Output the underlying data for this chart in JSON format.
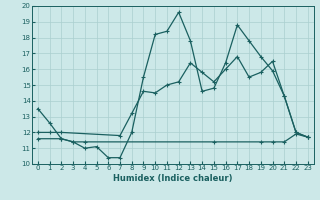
{
  "xlabel": "Humidex (Indice chaleur)",
  "xlim": [
    -0.5,
    23.5
  ],
  "ylim": [
    10,
    20
  ],
  "xticks": [
    0,
    1,
    2,
    3,
    4,
    5,
    6,
    7,
    8,
    9,
    10,
    11,
    12,
    13,
    14,
    15,
    16,
    17,
    18,
    19,
    20,
    21,
    22,
    23
  ],
  "yticks": [
    10,
    11,
    12,
    13,
    14,
    15,
    16,
    17,
    18,
    19,
    20
  ],
  "bg_color": "#cce8e8",
  "grid_color": "#aacfcf",
  "line_color": "#1a6060",
  "line1_x": [
    0,
    1,
    2,
    3,
    4,
    5,
    6,
    7,
    8,
    9,
    10,
    11,
    12,
    13,
    14,
    15,
    16,
    17,
    18,
    19,
    20,
    21,
    22,
    23
  ],
  "line1_y": [
    13.5,
    12.6,
    11.6,
    11.4,
    11.0,
    11.1,
    10.4,
    10.4,
    12.0,
    15.5,
    18.2,
    18.4,
    19.6,
    17.8,
    14.6,
    14.8,
    16.4,
    18.8,
    17.8,
    16.8,
    15.9,
    14.3,
    12.0,
    11.7
  ],
  "line2_x": [
    0,
    2,
    3,
    4,
    15,
    19,
    20,
    21,
    22,
    23
  ],
  "line2_y": [
    11.6,
    11.6,
    11.4,
    11.4,
    11.4,
    11.4,
    11.4,
    11.4,
    11.9,
    11.7
  ],
  "line3_x": [
    0,
    1,
    2,
    7,
    8,
    9,
    10,
    11,
    12,
    13,
    14,
    15,
    16,
    17,
    18,
    19,
    20,
    21,
    22,
    23
  ],
  "line3_y": [
    12.0,
    12.0,
    12.0,
    11.8,
    13.2,
    14.6,
    14.5,
    15.0,
    15.2,
    16.4,
    15.8,
    15.2,
    16.0,
    16.8,
    15.5,
    15.8,
    16.5,
    14.3,
    12.0,
    11.7
  ]
}
